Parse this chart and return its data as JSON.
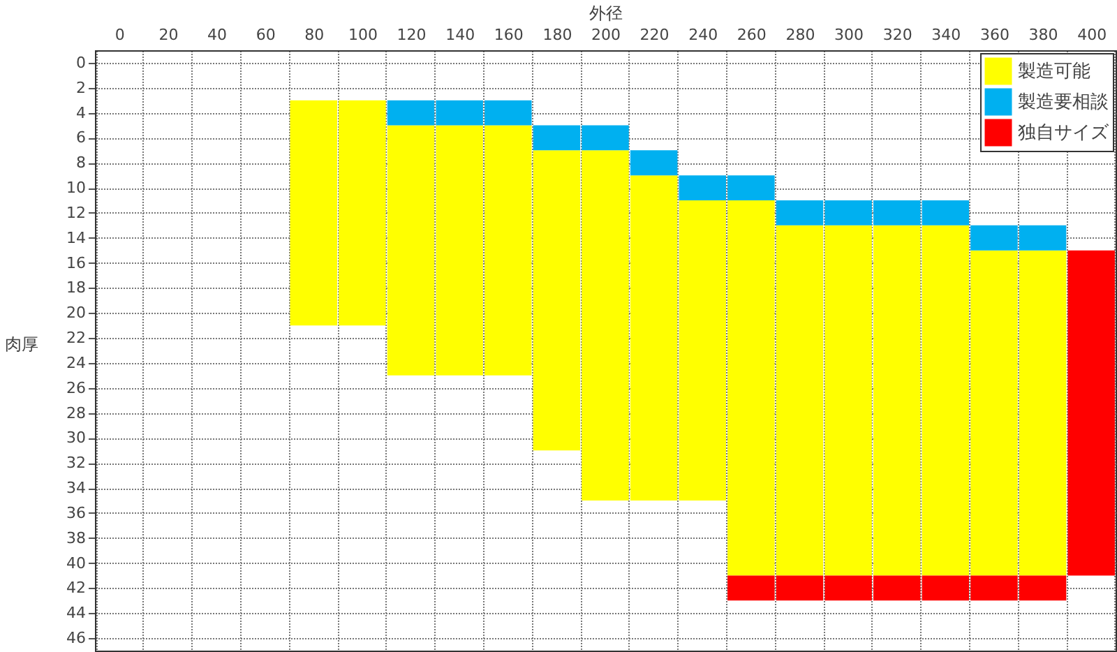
{
  "chart_data": {
    "type": "bar",
    "xlabel": "外径",
    "ylabel": "肉厚",
    "categories": [
      "0",
      "20",
      "40",
      "60",
      "80",
      "100",
      "120",
      "140",
      "160",
      "180",
      "200",
      "220",
      "240",
      "260",
      "280",
      "300",
      "320",
      "340",
      "360",
      "380",
      "400"
    ],
    "series": [
      {
        "name": "製造可能",
        "color": "#ffff00",
        "base": [
          null,
          null,
          null,
          null,
          3,
          3,
          5,
          5,
          5,
          7,
          7,
          9,
          11,
          11,
          13,
          13,
          13,
          13,
          15,
          15,
          null
        ],
        "values": [
          null,
          null,
          null,
          null,
          18,
          18,
          20,
          20,
          20,
          24,
          28,
          26,
          24,
          30,
          28,
          28,
          28,
          28,
          26,
          26,
          null
        ]
      },
      {
        "name": "製造要相談",
        "color": "#00b0f0",
        "base": [
          null,
          null,
          null,
          null,
          null,
          null,
          3,
          3,
          3,
          5,
          5,
          7,
          9,
          9,
          11,
          11,
          11,
          11,
          13,
          13,
          null
        ],
        "values": [
          null,
          null,
          null,
          null,
          null,
          null,
          2,
          2,
          2,
          2,
          2,
          2,
          2,
          2,
          2,
          2,
          2,
          2,
          2,
          2,
          null
        ]
      },
      {
        "name": "独自サイズ",
        "color": "#ff0000",
        "base": [
          null,
          null,
          null,
          null,
          null,
          null,
          null,
          null,
          null,
          null,
          null,
          null,
          null,
          41,
          41,
          41,
          41,
          41,
          41,
          41,
          15
        ],
        "values": [
          null,
          null,
          null,
          null,
          null,
          null,
          null,
          null,
          null,
          null,
          null,
          null,
          null,
          2,
          2,
          2,
          2,
          2,
          2,
          2,
          26
        ]
      }
    ],
    "ylim": [
      47,
      -1
    ],
    "yticks": [
      0,
      2,
      4,
      6,
      8,
      10,
      12,
      14,
      16,
      18,
      20,
      22,
      24,
      26,
      28,
      30,
      32,
      34,
      36,
      38,
      40,
      42,
      44,
      46
    ],
    "grid": true,
    "legend": "top right"
  }
}
